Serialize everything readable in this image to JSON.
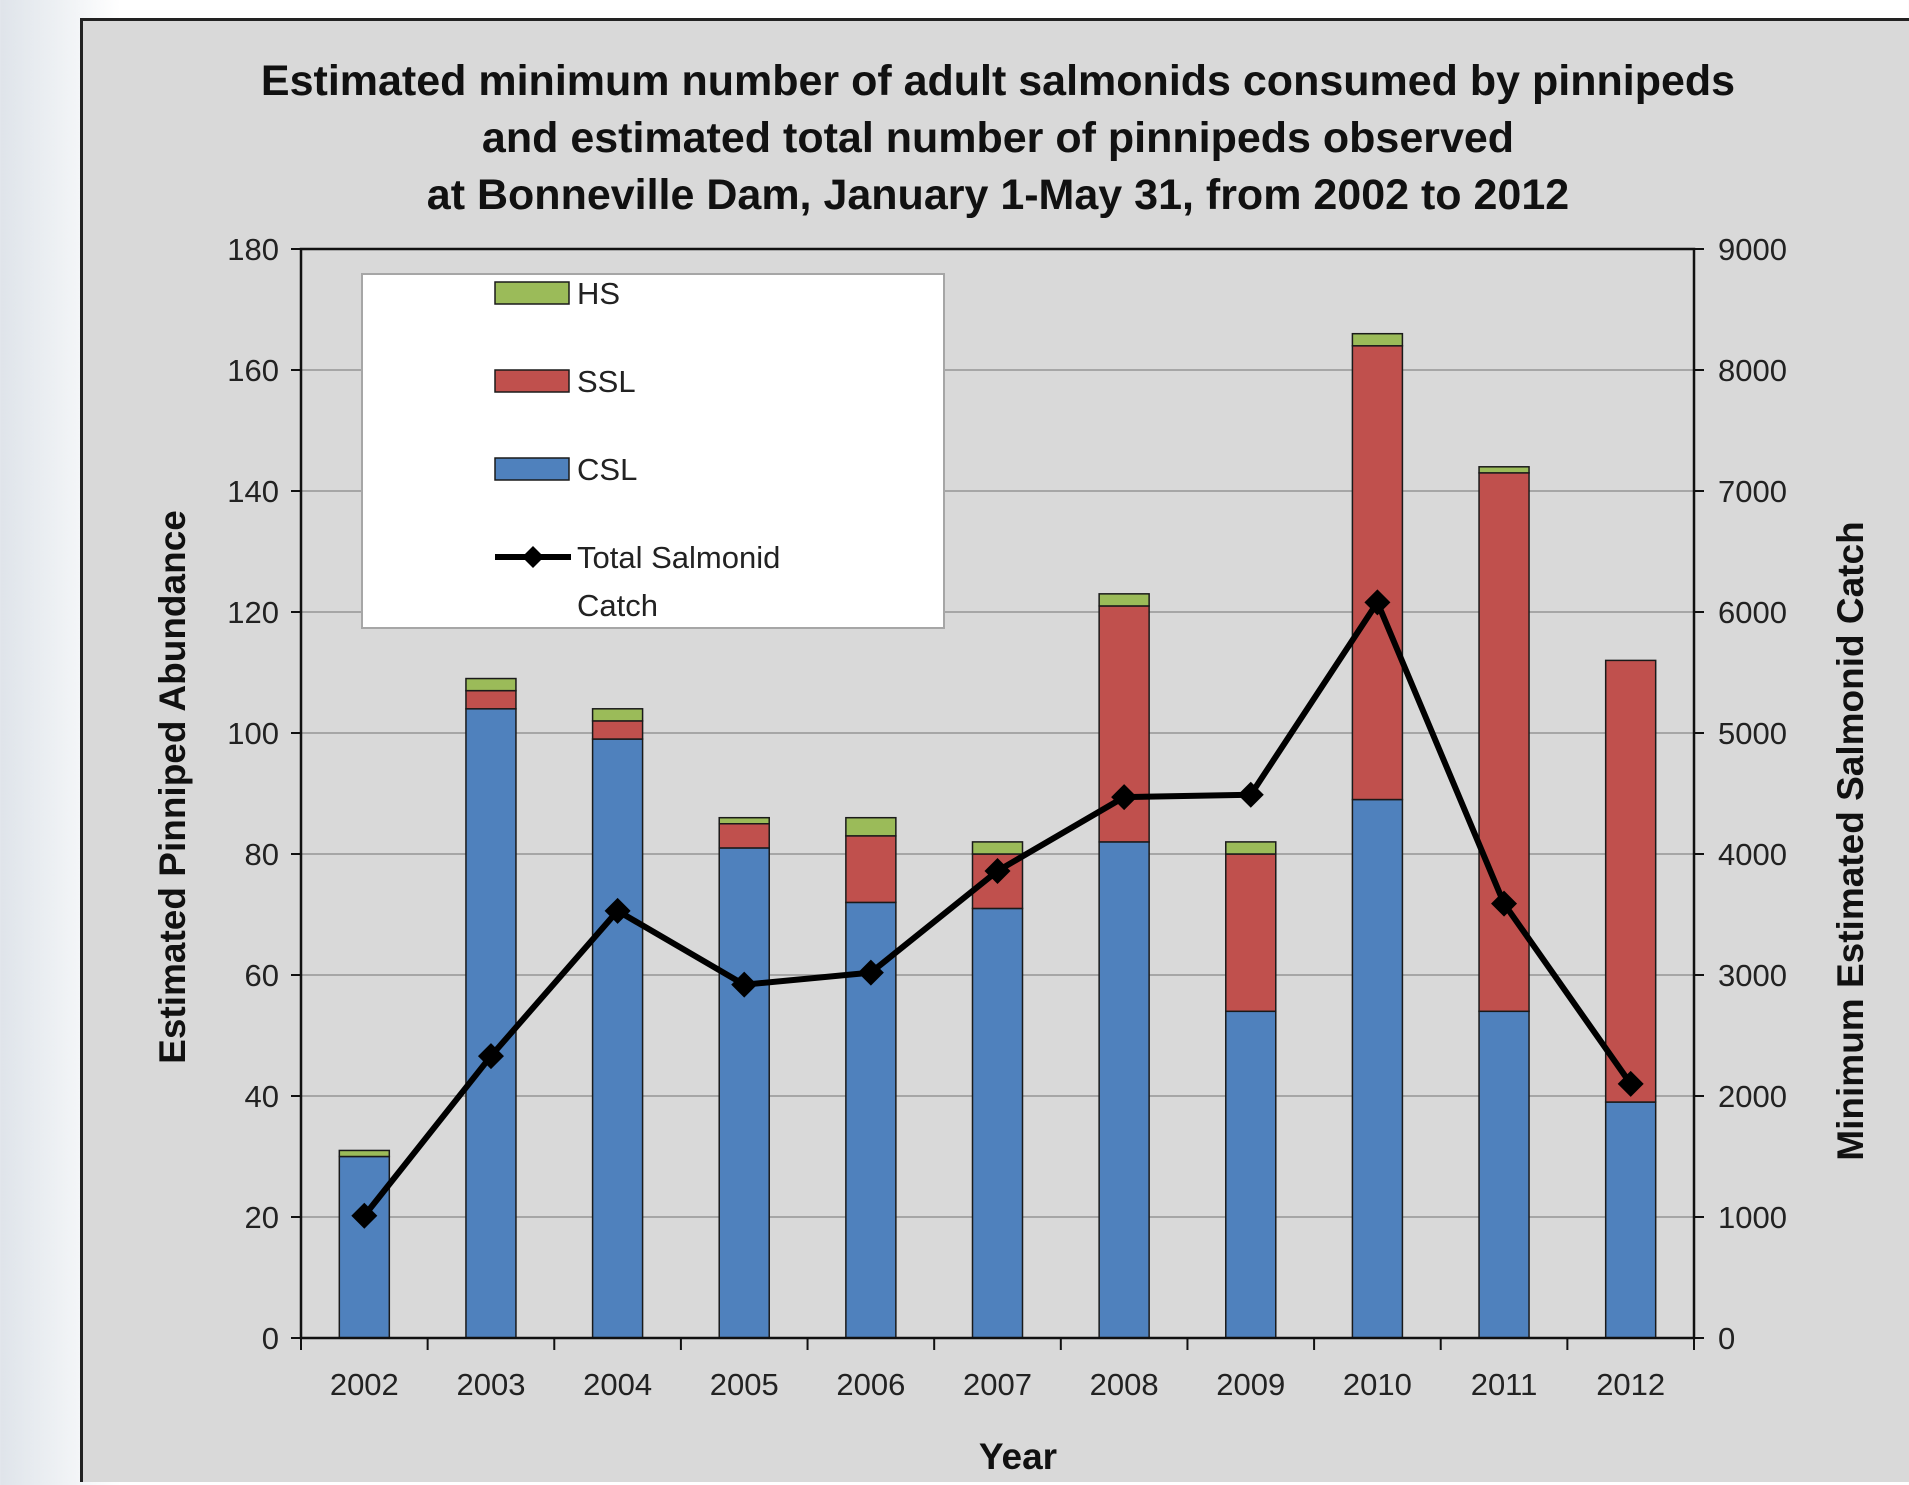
{
  "colors": {
    "CSL": "#4f81bd",
    "SSL": "#c0504d",
    "HS": "#9bbb59",
    "line": "#000000",
    "grid": "#a6a6a6",
    "plot_bg": "#d9d9d9"
  },
  "chart_data": {
    "type": "bar",
    "title_lines": [
      "Estimated minimum number of adult salmonids consumed by pinnipeds",
      "and estimated total number of pinnipeds observed",
      "at Bonneville Dam, January 1-May 31, from 2002 to 2012"
    ],
    "xlabel": "Year",
    "ylabel": "Estimated Pinniped Abundance",
    "y2label": "Minimum Estimated Salmonid Catch",
    "categories": [
      "2002",
      "2003",
      "2004",
      "2005",
      "2006",
      "2007",
      "2008",
      "2009",
      "2010",
      "2011",
      "2012"
    ],
    "ylim": [
      0,
      180
    ],
    "y_ticks": [
      0,
      20,
      40,
      60,
      80,
      100,
      120,
      140,
      160,
      180
    ],
    "y2lim": [
      0,
      9000
    ],
    "y2_ticks": [
      0,
      1000,
      2000,
      3000,
      4000,
      5000,
      6000,
      7000,
      8000,
      9000
    ],
    "stacked": true,
    "grid": true,
    "legend_position": "top-left",
    "series": [
      {
        "name": "CSL",
        "type": "bar",
        "axis": "left",
        "values": [
          30,
          104,
          99,
          81,
          72,
          71,
          82,
          54,
          89,
          54,
          39
        ]
      },
      {
        "name": "SSL",
        "type": "bar",
        "axis": "left",
        "values": [
          0,
          3,
          3,
          4,
          11,
          9,
          39,
          26,
          75,
          89,
          73
        ]
      },
      {
        "name": "HS",
        "type": "bar",
        "axis": "left",
        "values": [
          1,
          2,
          2,
          1,
          3,
          2,
          2,
          2,
          2,
          1,
          0
        ]
      },
      {
        "name": "Total Salmonid Catch",
        "type": "line",
        "axis": "right",
        "values": [
          1010,
          2330,
          3530,
          2920,
          3020,
          3860,
          4470,
          4490,
          6080,
          3590,
          2100
        ]
      }
    ],
    "legend": [
      {
        "key": "HS",
        "label": "HS"
      },
      {
        "key": "SSL",
        "label": "SSL"
      },
      {
        "key": "CSL",
        "label": "CSL"
      },
      {
        "key": "Total Salmonid Catch",
        "label_lines": [
          "Total Salmonid",
          "Catch"
        ]
      }
    ]
  }
}
